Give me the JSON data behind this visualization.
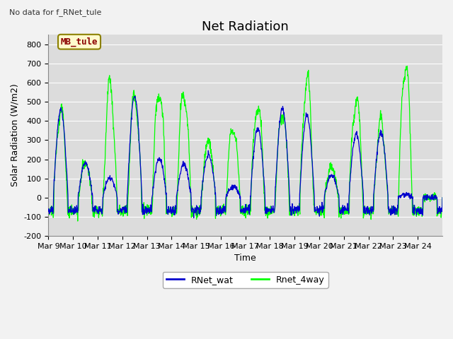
{
  "title": "Net Radiation",
  "subtitle": "No data for f_RNet_tule",
  "xlabel": "Time",
  "ylabel": "Solar Radiation (W/m2)",
  "ylim": [
    -200,
    850
  ],
  "yticks": [
    -200,
    -100,
    0,
    100,
    200,
    300,
    400,
    500,
    600,
    700,
    800
  ],
  "x_labels": [
    "Mar 9",
    "Mar 10",
    "Mar 11",
    "Mar 12",
    "Mar 13",
    "Mar 14",
    "Mar 15",
    "Mar 16",
    "Mar 17",
    "Mar 18",
    "Mar 19",
    "Mar 20",
    "Mar 21",
    "Mar 22",
    "Mar 23",
    "Mar 24"
  ],
  "annotation_text": "MB_tule",
  "annotation_color": "#8B0000",
  "annotation_bg": "#FFFACD",
  "line1_color": "#0000CD",
  "line2_color": "#00FF00",
  "line1_label": "RNet_wat",
  "line2_label": "Rnet_4way",
  "background_color": "#DCDCDC",
  "grid_color": "#BEBEBE",
  "title_fontsize": 13,
  "label_fontsize": 9,
  "tick_fontsize": 8
}
